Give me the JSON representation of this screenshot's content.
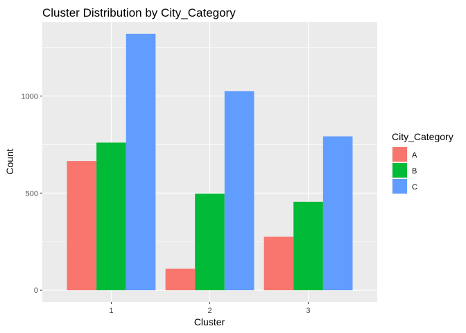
{
  "chart_data": {
    "type": "bar",
    "title": "Cluster Distribution by City_Category",
    "xlabel": "Cluster",
    "ylabel": "Count",
    "categories": [
      "1",
      "2",
      "3"
    ],
    "yticks": [
      0,
      500,
      1000
    ],
    "ylim": [
      -60,
      1380
    ],
    "grid": true,
    "legend_position": "right",
    "legend_title": "City_Category",
    "series": [
      {
        "name": "A",
        "color": "#F8766D",
        "values": [
          665,
          110,
          275
        ]
      },
      {
        "name": "B",
        "color": "#00BA38",
        "values": [
          760,
          497,
          455
        ]
      },
      {
        "name": "C",
        "color": "#619CFF",
        "values": [
          1320,
          1025,
          792
        ]
      }
    ]
  }
}
